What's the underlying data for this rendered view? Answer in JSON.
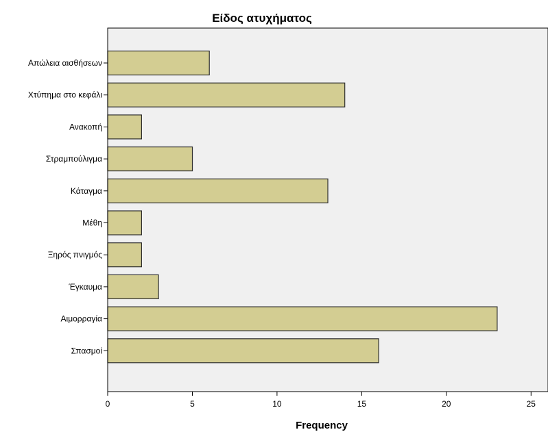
{
  "chart_data": {
    "type": "bar",
    "orientation": "horizontal",
    "title": "Είδος ατυχήματος",
    "xlabel": "Frequency",
    "ylabel": "",
    "categories": [
      "Απώλεια αισθήσεων",
      "Χτύπημα στο κεφάλι",
      "Ανακοπή",
      "Στραμπούλιγμα",
      "Κάταγμα",
      "Μέθη",
      "Ξηρός πνιγμός",
      "Έγκαυμα",
      "Αιμορραγία",
      "Σπασμοί"
    ],
    "values": [
      6,
      14,
      2,
      5,
      13,
      2,
      2,
      3,
      23,
      16
    ],
    "xlim": [
      0,
      26
    ],
    "xticks": [
      0,
      5,
      10,
      15,
      20,
      25
    ],
    "grid": false,
    "legend": "none",
    "colors": {
      "bar_fill": "#d3cd92",
      "bar_stroke": "#2e2e2e",
      "plot_background": "#f0f0f0",
      "axis": "#000000"
    }
  }
}
